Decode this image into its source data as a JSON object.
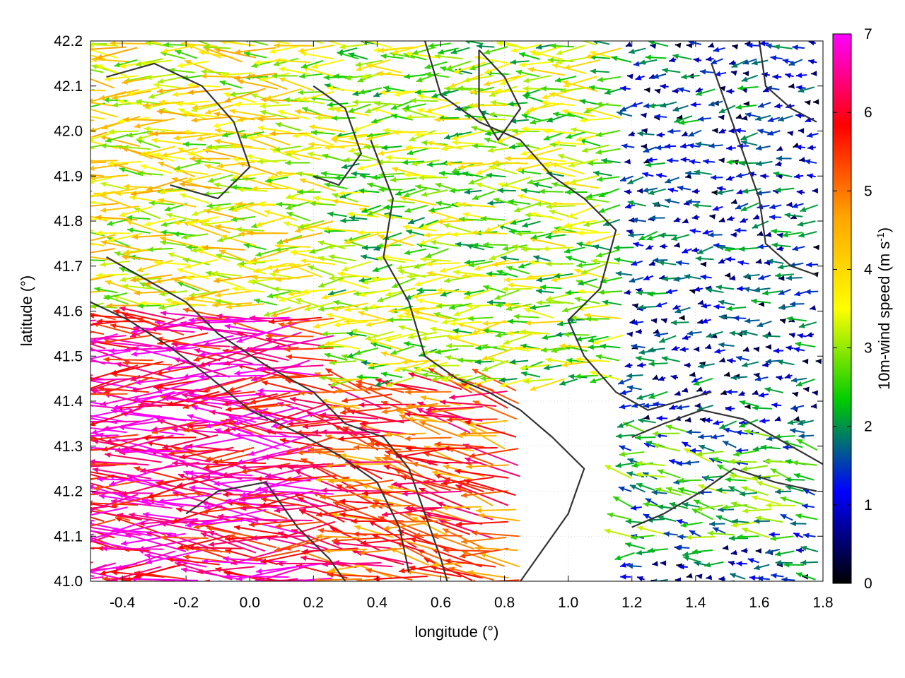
{
  "chart_data": {
    "type": "vector-field",
    "xlabel": "longitude (°)",
    "ylabel": "latitude (°)",
    "colorbar_label": "10m-wind speed (m s",
    "colorbar_label_sup": "-1",
    "colorbar_label_end": ")",
    "xlim": [
      -0.5,
      1.8
    ],
    "ylim": [
      41.0,
      42.2
    ],
    "colorbar_range": [
      0,
      7
    ],
    "x_ticks": [
      -0.4,
      -0.2,
      0.0,
      0.2,
      0.4,
      0.6,
      0.8,
      1.0,
      1.2,
      1.4,
      1.6,
      1.8
    ],
    "x_tick_labels": [
      "-0.4",
      "-0.2",
      "0.0",
      "0.2",
      "0.4",
      "0.6",
      "0.8",
      "1.0",
      "1.2",
      "1.4",
      "1.6",
      "1.8"
    ],
    "y_ticks": [
      41.0,
      41.1,
      41.2,
      41.3,
      41.4,
      41.5,
      41.6,
      41.7,
      41.8,
      41.9,
      42.0,
      42.1,
      42.2
    ],
    "y_tick_labels": [
      "41.0",
      "41.1",
      "41.2",
      "41.3",
      "41.4",
      "41.5",
      "41.6",
      "41.7",
      "41.8",
      "41.9",
      "42.0",
      "42.1",
      "42.2"
    ],
    "colorbar_ticks": [
      0,
      1,
      2,
      3,
      4,
      5,
      6,
      7
    ],
    "colorbar_tick_labels": [
      "0",
      "1",
      "2",
      "3",
      "4",
      "5",
      "6",
      "7"
    ],
    "colorbar_colors": [
      "#000000",
      "#0000ff",
      "#00cc00",
      "#ffff00",
      "#ffa500",
      "#ff0000",
      "#ff00ff"
    ],
    "grid": true,
    "wind_regions": [
      {
        "lon": [
          -0.5,
          0.3
        ],
        "lat": [
          41.0,
          41.6
        ],
        "mean_speed": 6.3,
        "direction_deg": 180
      },
      {
        "lon": [
          -0.5,
          0.3
        ],
        "lat": [
          41.6,
          42.2
        ],
        "mean_speed": 3.6,
        "direction_deg": 178
      },
      {
        "lon": [
          0.3,
          0.85
        ],
        "lat": [
          41.0,
          41.45
        ],
        "mean_speed": 5.4,
        "direction_deg": 170
      },
      {
        "lon": [
          0.3,
          1.2
        ],
        "lat": [
          41.45,
          42.2
        ],
        "mean_speed": 3.0,
        "direction_deg": 182
      },
      {
        "lon": [
          1.2,
          1.8
        ],
        "lat": [
          41.0,
          41.1
        ],
        "mean_speed": 1.2,
        "direction_deg": 180
      },
      {
        "lon": [
          1.2,
          1.8
        ],
        "lat": [
          41.1,
          41.35
        ],
        "mean_speed": 2.2,
        "direction_deg": 170
      },
      {
        "lon": [
          1.2,
          1.8
        ],
        "lat": [
          41.35,
          42.2
        ],
        "mean_speed": 1.2,
        "direction_deg": 185
      }
    ],
    "contours": [
      [
        [
          -0.45,
          41.72
        ],
        [
          -0.35,
          41.68
        ],
        [
          -0.2,
          41.62
        ],
        [
          -0.1,
          41.55
        ],
        [
          0.05,
          41.48
        ],
        [
          0.2,
          41.42
        ],
        [
          0.3,
          41.35
        ],
        [
          0.42,
          41.32
        ],
        [
          0.5,
          41.25
        ],
        [
          0.55,
          41.15
        ],
        [
          0.6,
          41.05
        ],
        [
          0.62,
          41.0
        ]
      ],
      [
        [
          -0.5,
          41.62
        ],
        [
          -0.38,
          41.58
        ],
        [
          -0.25,
          41.52
        ],
        [
          -0.12,
          41.45
        ],
        [
          0.0,
          41.38
        ],
        [
          0.15,
          41.33
        ],
        [
          0.28,
          41.28
        ],
        [
          0.4,
          41.22
        ],
        [
          0.47,
          41.12
        ],
        [
          0.5,
          41.02
        ]
      ],
      [
        [
          0.38,
          41.98
        ],
        [
          0.45,
          41.85
        ],
        [
          0.42,
          41.72
        ],
        [
          0.5,
          41.62
        ],
        [
          0.55,
          41.5
        ],
        [
          0.65,
          41.45
        ],
        [
          0.75,
          41.42
        ],
        [
          0.85,
          41.38
        ],
        [
          0.95,
          41.32
        ],
        [
          1.05,
          41.25
        ],
        [
          1.0,
          41.15
        ],
        [
          0.9,
          41.05
        ],
        [
          0.85,
          41.0
        ]
      ],
      [
        [
          0.55,
          42.2
        ],
        [
          0.6,
          42.08
        ],
        [
          0.72,
          42.02
        ],
        [
          0.85,
          41.98
        ],
        [
          0.95,
          41.9
        ],
        [
          1.05,
          41.85
        ],
        [
          1.15,
          41.78
        ],
        [
          1.1,
          41.65
        ],
        [
          1.0,
          41.58
        ],
        [
          1.05,
          41.5
        ],
        [
          1.15,
          41.42
        ],
        [
          1.25,
          41.38
        ],
        [
          1.35,
          41.4
        ],
        [
          1.45,
          41.42
        ]
      ],
      [
        [
          1.2,
          41.32
        ],
        [
          1.3,
          41.35
        ],
        [
          1.42,
          41.38
        ],
        [
          1.55,
          41.36
        ],
        [
          1.65,
          41.32
        ],
        [
          1.75,
          41.28
        ],
        [
          1.8,
          41.26
        ]
      ],
      [
        [
          1.2,
          41.12
        ],
        [
          1.3,
          41.15
        ],
        [
          1.42,
          41.2
        ],
        [
          1.52,
          41.25
        ],
        [
          1.65,
          41.22
        ],
        [
          1.78,
          41.2
        ]
      ],
      [
        [
          1.45,
          42.15
        ],
        [
          1.5,
          42.05
        ],
        [
          1.55,
          41.95
        ],
        [
          1.6,
          41.85
        ],
        [
          1.62,
          41.75
        ],
        [
          1.7,
          41.7
        ],
        [
          1.78,
          41.68
        ]
      ],
      [
        [
          1.6,
          42.2
        ],
        [
          1.62,
          42.1
        ],
        [
          1.7,
          42.05
        ],
        [
          1.78,
          42.02
        ]
      ],
      [
        [
          0.72,
          42.18
        ],
        [
          0.8,
          42.12
        ],
        [
          0.85,
          42.05
        ],
        [
          0.78,
          41.98
        ],
        [
          0.72,
          42.05
        ],
        [
          0.72,
          42.18
        ]
      ],
      [
        [
          -0.45,
          42.12
        ],
        [
          -0.3,
          42.15
        ],
        [
          -0.15,
          42.1
        ],
        [
          -0.05,
          42.02
        ],
        [
          0.0,
          41.92
        ],
        [
          -0.1,
          41.85
        ],
        [
          -0.25,
          41.88
        ]
      ],
      [
        [
          0.2,
          42.1
        ],
        [
          0.3,
          42.05
        ],
        [
          0.35,
          41.95
        ],
        [
          0.28,
          41.88
        ],
        [
          0.2,
          41.9
        ]
      ],
      [
        [
          -0.2,
          41.15
        ],
        [
          -0.1,
          41.2
        ],
        [
          0.05,
          41.22
        ],
        [
          0.15,
          41.12
        ],
        [
          0.25,
          41.05
        ],
        [
          0.3,
          41.0
        ]
      ]
    ]
  }
}
